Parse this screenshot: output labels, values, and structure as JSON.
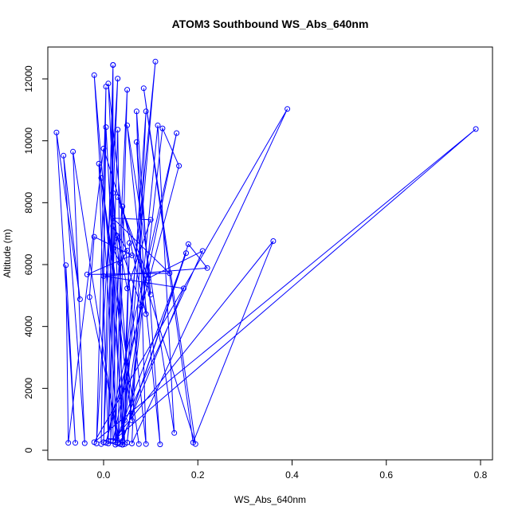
{
  "chart_data": {
    "type": "line",
    "title": "ATOM3 Southbound WS_Abs_640nm",
    "xlabel": "WS_Abs_640nm",
    "ylabel": "Altitude (m)",
    "xlim": [
      -0.1,
      0.8
    ],
    "ylim": [
      0,
      12600
    ],
    "xticks": [
      "0.0",
      "0.2",
      "0.4",
      "0.6",
      "0.8"
    ],
    "xtick_values": [
      0.0,
      0.2,
      0.4,
      0.6,
      0.8
    ],
    "yticks": [
      "0",
      "2000",
      "4000",
      "6000",
      "8000",
      "10000",
      "12000"
    ],
    "ytick_values": [
      0,
      2000,
      4000,
      6000,
      8000,
      10000,
      12000
    ],
    "grid": false,
    "colors": {
      "series": "#0000ff",
      "axes": "#000000"
    },
    "series": [
      {
        "values": [
          [
            0.01,
            220
          ],
          [
            0.02,
            12450
          ],
          [
            0.015,
            300
          ],
          [
            0.05,
            11650
          ],
          [
            0.03,
            250
          ],
          [
            0.11,
            12560
          ],
          [
            0.04,
            180
          ],
          [
            0.09,
            10950
          ],
          [
            0.06,
            220
          ],
          [
            0.39,
            11030
          ],
          [
            -0.02,
            260
          ],
          [
            0.79,
            10380
          ],
          [
            0.02,
            300
          ],
          [
            0.36,
            6760
          ],
          [
            0.19,
            250
          ],
          [
            0.085,
            11700
          ],
          [
            0.195,
            200
          ],
          [
            0.0,
            9750
          ],
          [
            -0.075,
            240
          ],
          [
            -0.08,
            5980
          ],
          [
            -0.06,
            240
          ],
          [
            -0.1,
            10270
          ],
          [
            -0.05,
            4880
          ],
          [
            -0.085,
            9520
          ],
          [
            -0.04,
            230
          ],
          [
            -0.065,
            9650
          ],
          [
            0.03,
            210
          ],
          [
            -0.02,
            12120
          ],
          [
            0.045,
            200
          ],
          [
            0.01,
            11850
          ],
          [
            0.09,
            200
          ],
          [
            0.07,
            10950
          ],
          [
            0.12,
            190
          ],
          [
            0.05,
            10500
          ],
          [
            0.15,
            560
          ],
          [
            0.115,
            10500
          ],
          [
            0.05,
            250
          ],
          [
            0.125,
            10400
          ],
          [
            0.16,
            9190
          ],
          [
            0.005,
            240
          ],
          [
            0.155,
            10250
          ],
          [
            0.02,
            300
          ],
          [
            0.02,
            12450
          ],
          [
            0.0,
            260
          ],
          [
            0.03,
            12010
          ],
          [
            -0.015,
            220
          ],
          [
            0.005,
            11750
          ],
          [
            -0.005,
            200
          ],
          [
            0.005,
            10440
          ],
          [
            0.04,
            260
          ],
          [
            0.03,
            10360
          ],
          [
            0.01,
            300
          ],
          [
            -0.01,
            9260
          ],
          [
            0.075,
            200
          ],
          [
            -0.005,
            8800
          ],
          [
            0.06,
            960
          ],
          [
            0.02,
            8310
          ],
          [
            0.025,
            180
          ],
          [
            0.04,
            7880
          ],
          [
            0.09,
            4400
          ],
          [
            0.07,
            9960
          ],
          [
            0.1,
            5030
          ],
          [
            0.03,
            8180
          ],
          [
            0.095,
            5560
          ],
          [
            0.21,
            6440
          ],
          [
            0.025,
            260
          ],
          [
            0.175,
            6370
          ],
          [
            0.04,
            300
          ],
          [
            0.18,
            6660
          ],
          [
            0.22,
            5890
          ],
          [
            0.0,
            5630
          ],
          [
            0.17,
            5230
          ],
          [
            0.035,
            200
          ],
          [
            -0.03,
            4950
          ],
          [
            -0.02,
            6900
          ],
          [
            0.06,
            6300
          ],
          [
            -0.035,
            5680
          ],
          [
            0.14,
            5720
          ],
          [
            0.02,
            7500
          ],
          [
            0.1,
            7450
          ],
          [
            0.05,
            5230
          ],
          [
            0.03,
            6920
          ],
          [
            0.02,
            6520
          ],
          [
            0.035,
            6050
          ],
          [
            0.05,
            6450
          ],
          [
            0.02,
            7250
          ],
          [
            0.08,
            4650
          ],
          [
            0.045,
            970
          ],
          [
            0.055,
            6700
          ],
          [
            0.04,
            180
          ]
        ]
      }
    ]
  }
}
